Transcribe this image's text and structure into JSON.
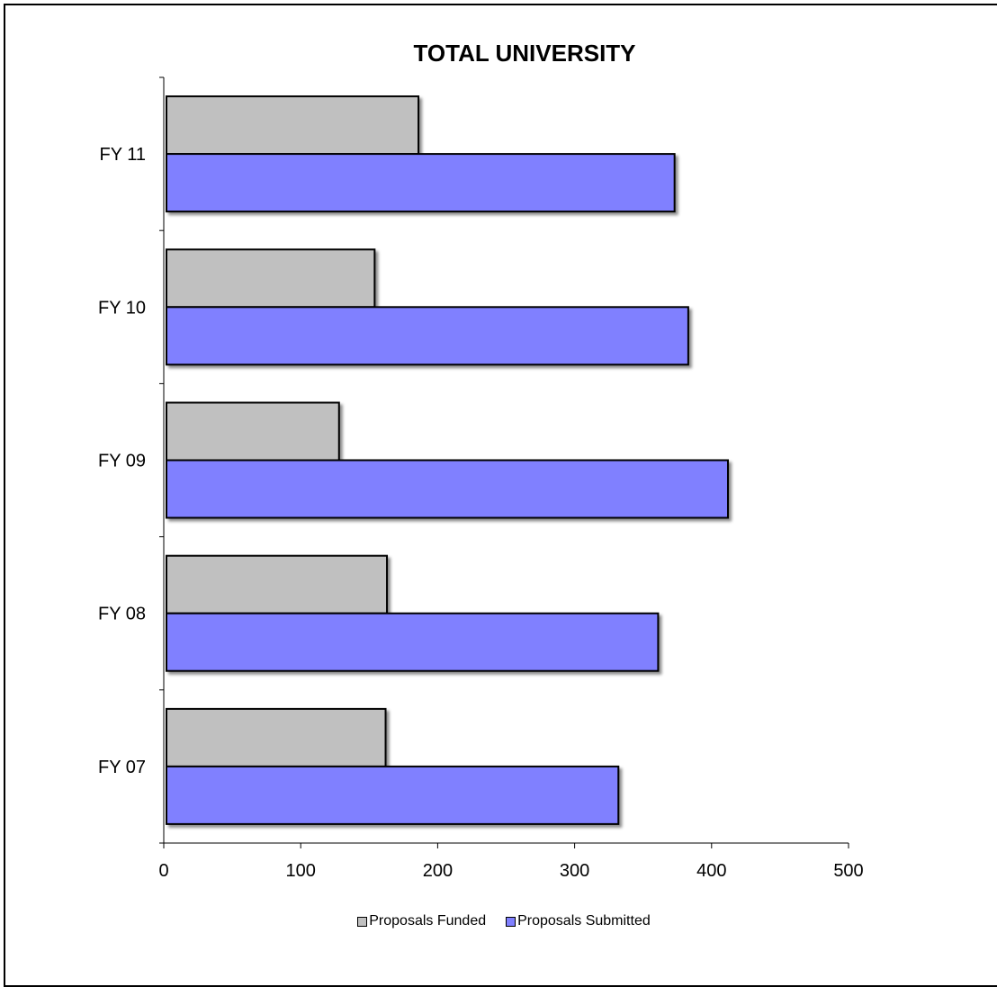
{
  "chart_data": {
    "type": "bar",
    "orientation": "horizontal",
    "title": "TOTAL UNIVERSITY",
    "xlabel": "",
    "ylabel": "",
    "categories": [
      "FY 07",
      "FY 08",
      "FY 09",
      "FY 10",
      "FY 11"
    ],
    "series": [
      {
        "name": "Proposals Funded",
        "color": "#c0c0c0",
        "values": [
          160,
          161,
          126,
          152,
          184
        ]
      },
      {
        "name": "Proposals Submitted",
        "color": "#8080ff",
        "values": [
          330,
          359,
          410,
          381,
          371
        ]
      }
    ],
    "xlim": [
      0,
      500
    ],
    "xticks": [
      0,
      100,
      200,
      300,
      400,
      500
    ],
    "grid": false,
    "legend_position": "bottom"
  }
}
